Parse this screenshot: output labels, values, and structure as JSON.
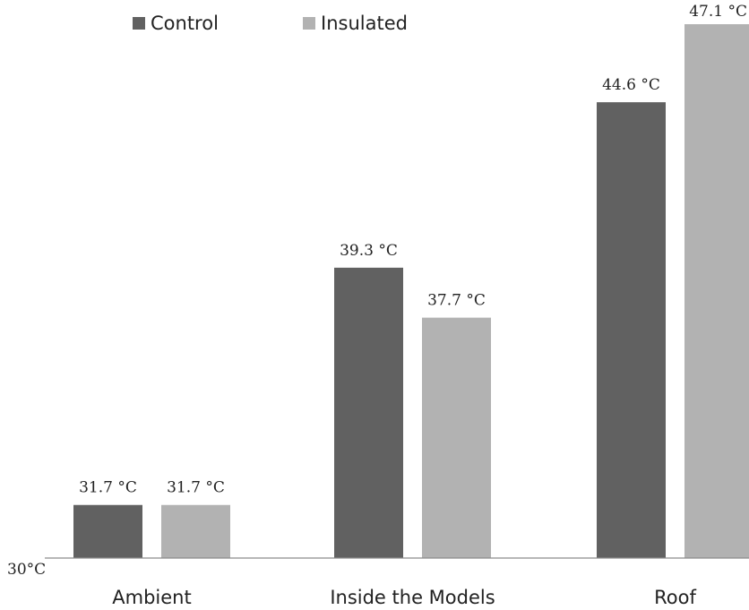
{
  "chart_data": {
    "type": "bar",
    "title": "",
    "xlabel": "",
    "ylabel": "",
    "categories": [
      "Ambient",
      "Inside the Models",
      "Roof"
    ],
    "series": [
      {
        "name": "Control",
        "values": [
          31.7,
          39.3,
          44.6
        ],
        "labels": [
          "31.7 °C",
          "39.3 °C",
          "44.6 °C"
        ],
        "color": "#616161"
      },
      {
        "name": "Insulated",
        "values": [
          31.7,
          37.7,
          47.1
        ],
        "labels": [
          "31.7 °C",
          "37.7 °C",
          "47.1 °C"
        ],
        "color": "#b2b2b2"
      }
    ],
    "ylim": [
      30,
      47.1
    ],
    "y_tick_label": "30°C",
    "grid": false,
    "legend_position": "top-left"
  }
}
